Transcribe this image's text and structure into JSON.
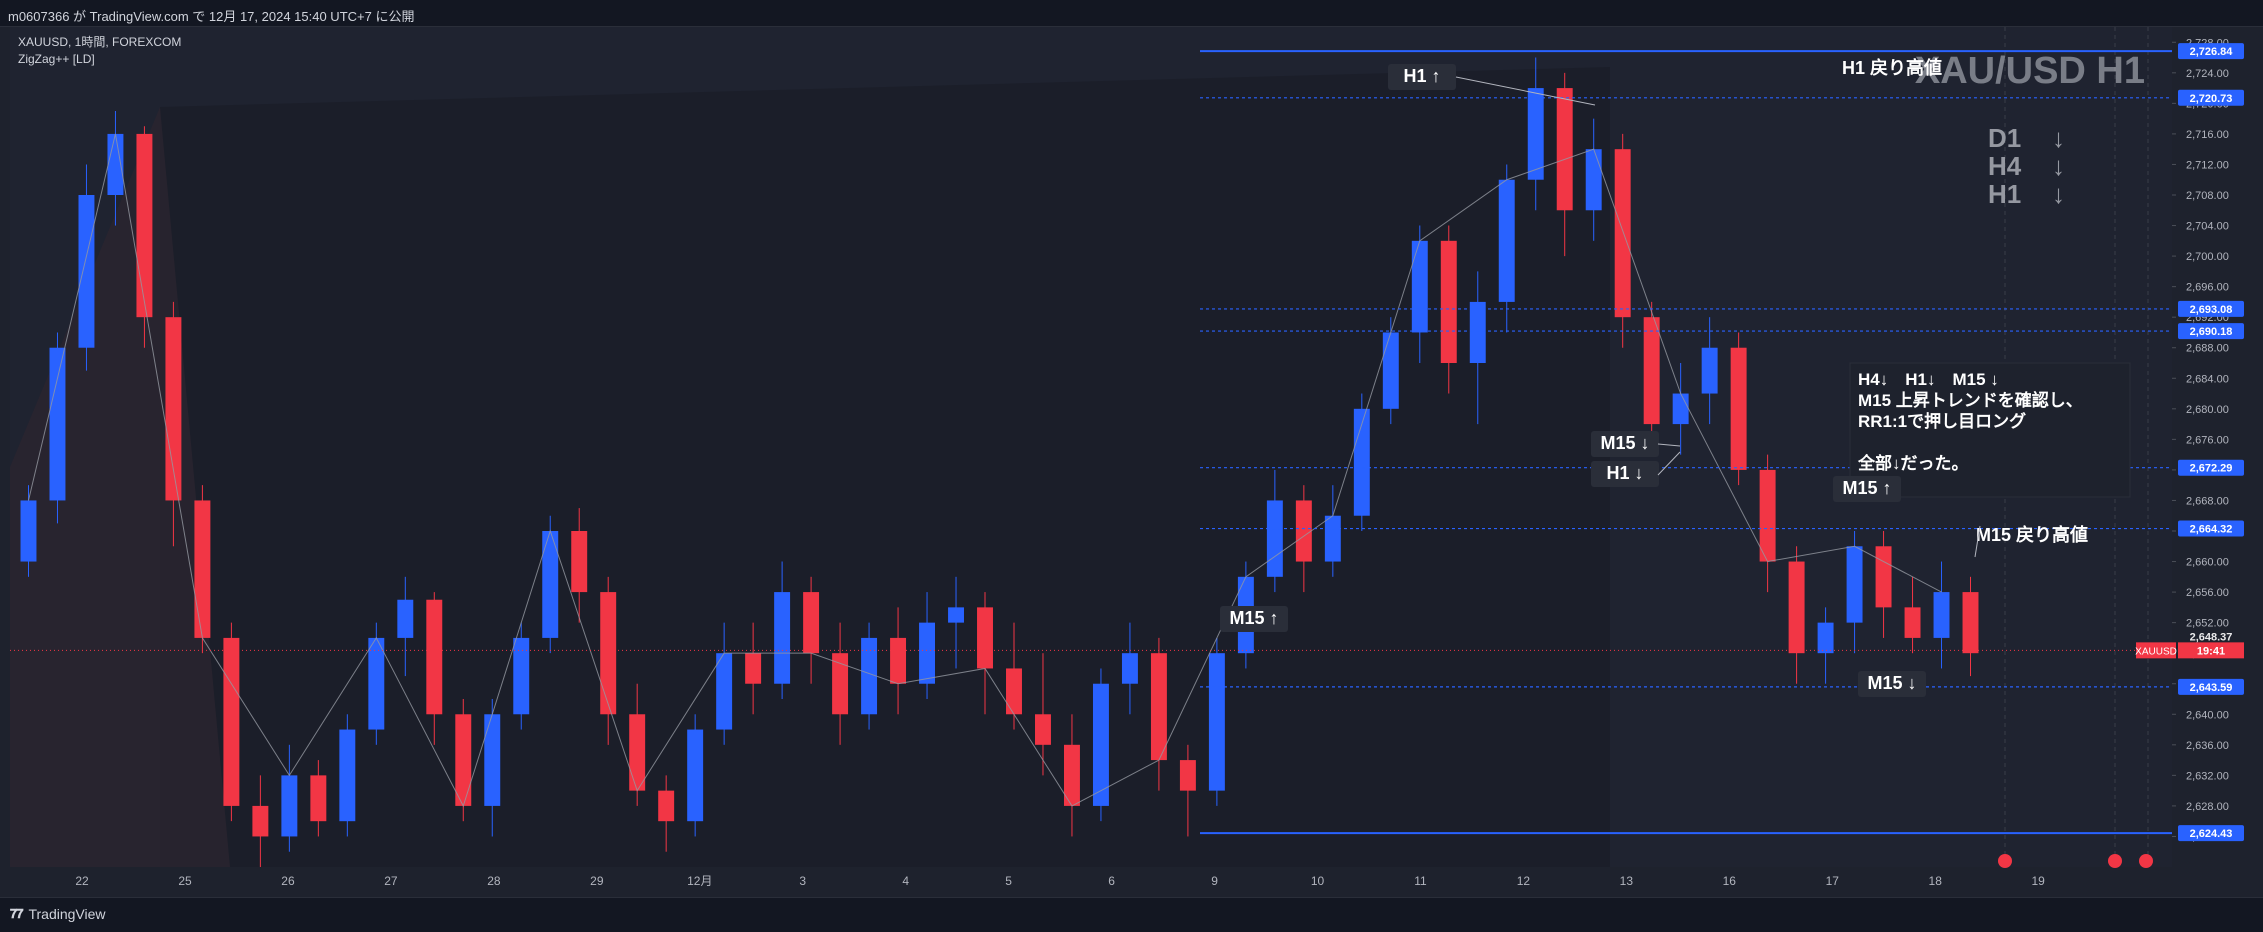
{
  "header": {
    "published_text": "m0607366 が TradingView.com で 12月 17, 2024 15:40 UTC+7 に公開"
  },
  "legend": {
    "symbol_line": "XAUUSD, 1時間, FOREXCOM",
    "indicator_line": "ZigZag++ [LD]"
  },
  "watermark": "XAU/USD H1",
  "trend_block": [
    {
      "label": "D1",
      "arrow": "↓"
    },
    {
      "label": "H4",
      "arrow": "↓"
    },
    {
      "label": "H1",
      "arrow": "↓"
    }
  ],
  "note": {
    "lines": [
      "H4↓　H1↓　M15 ↓",
      "M15 上昇トレンドを確認し、",
      "RR1:1で押し目ロング",
      "",
      "全部↓だった。"
    ]
  },
  "current_price": {
    "symbol": "XAUUSD",
    "countdown": "19:41",
    "partial_value": "2,648.37"
  },
  "footer": {
    "brand": "TradingView"
  },
  "colors": {
    "bull": "#2962ff",
    "bear": "#f23645",
    "level": "#2962ff",
    "background": "#1e222d",
    "zigzag": "#9598a1"
  },
  "chart_data": {
    "type": "candlestick",
    "symbol": "XAUUSD",
    "timeframe": "1時間",
    "ylim": [
      2620,
      2730
    ],
    "y_ticks": [
      2624.0,
      2628.0,
      2632.0,
      2636.0,
      2640.0,
      2644.0,
      2648.0,
      2652.0,
      2656.0,
      2660.0,
      2664.0,
      2668.0,
      2672.0,
      2676.0,
      2680.0,
      2684.0,
      2688.0,
      2692.0,
      2696.0,
      2700.0,
      2704.0,
      2708.0,
      2712.0,
      2716.0,
      2720.0,
      2724.0,
      2728.0
    ],
    "y_tick_labels": [
      "2,624.00",
      "2,628.00",
      "2,632.00",
      "2,636.00",
      "2,640.00",
      "2,644.00",
      "2,648.00",
      "2,652.00",
      "2,656.00",
      "2,660.00",
      "2,664.00",
      "2,668.00",
      "2,672.00",
      "2,676.00",
      "2,680.00",
      "2,684.00",
      "2,688.00",
      "2,692.00",
      "2,696.00",
      "2,700.00",
      "2,704.00",
      "2,708.00",
      "2,712.00",
      "2,716.00",
      "2,720.00",
      "2,724.00",
      "2,728.00"
    ],
    "x_tick_labels": [
      "22",
      "25",
      "26",
      "27",
      "28",
      "29",
      "12月",
      "3",
      "4",
      "5",
      "6",
      "9",
      "10",
      "11",
      "12",
      "13",
      "16",
      "17",
      "18",
      "19"
    ],
    "price_levels": [
      {
        "label": "2,726.84",
        "value": 2726.84,
        "style": "solid"
      },
      {
        "label": "2,720.73",
        "value": 2720.73,
        "style": "dotted"
      },
      {
        "label": "2,693.08",
        "value": 2693.08,
        "style": "dotted"
      },
      {
        "label": "2,690.18",
        "value": 2690.18,
        "style": "dotted"
      },
      {
        "label": "2,672.29",
        "value": 2672.29,
        "style": "dotted"
      },
      {
        "label": "2,664.32",
        "value": 2664.32,
        "style": "dotted"
      },
      {
        "label": "2,643.59",
        "value": 2643.59,
        "style": "dotted"
      },
      {
        "label": "2,624.43",
        "value": 2624.43,
        "style": "solid"
      }
    ],
    "current_price": 2648.37,
    "annotations": [
      {
        "text": "H1 ↑"
      },
      {
        "text": "H1 戻り高値"
      },
      {
        "text": "M15 ↓"
      },
      {
        "text": "H1 ↓"
      },
      {
        "text": "M15 ↑"
      },
      {
        "text": "M15 ↑"
      },
      {
        "text": "M15 戻り高値"
      },
      {
        "text": "M15 ↓"
      }
    ],
    "ohlc": [
      [
        2660,
        2670,
        2658,
        2668
      ],
      [
        2668,
        2690,
        2665,
        2688
      ],
      [
        2688,
        2712,
        2685,
        2708
      ],
      [
        2708,
        2719,
        2704,
        2716
      ],
      [
        2716,
        2717,
        2688,
        2692
      ],
      [
        2692,
        2694,
        2662,
        2668
      ],
      [
        2668,
        2670,
        2648,
        2650
      ],
      [
        2650,
        2652,
        2626,
        2628
      ],
      [
        2628,
        2632,
        2620,
        2624
      ],
      [
        2624,
        2636,
        2622,
        2632
      ],
      [
        2632,
        2634,
        2624,
        2626
      ],
      [
        2626,
        2640,
        2624,
        2638
      ],
      [
        2638,
        2652,
        2636,
        2650
      ],
      [
        2650,
        2658,
        2645,
        2655
      ],
      [
        2655,
        2656,
        2636,
        2640
      ],
      [
        2640,
        2642,
        2626,
        2628
      ],
      [
        2628,
        2642,
        2624,
        2640
      ],
      [
        2640,
        2652,
        2638,
        2650
      ],
      [
        2650,
        2666,
        2648,
        2664
      ],
      [
        2664,
        2667,
        2652,
        2656
      ],
      [
        2656,
        2658,
        2636,
        2640
      ],
      [
        2640,
        2644,
        2628,
        2630
      ],
      [
        2630,
        2632,
        2622,
        2626
      ],
      [
        2626,
        2640,
        2624,
        2638
      ],
      [
        2638,
        2652,
        2636,
        2648
      ],
      [
        2648,
        2652,
        2640,
        2644
      ],
      [
        2644,
        2660,
        2642,
        2656
      ],
      [
        2656,
        2658,
        2644,
        2648
      ],
      [
        2648,
        2652,
        2636,
        2640
      ],
      [
        2640,
        2652,
        2638,
        2650
      ],
      [
        2650,
        2654,
        2640,
        2644
      ],
      [
        2644,
        2656,
        2642,
        2652
      ],
      [
        2652,
        2658,
        2646,
        2654
      ],
      [
        2654,
        2656,
        2640,
        2646
      ],
      [
        2646,
        2652,
        2638,
        2640
      ],
      [
        2640,
        2648,
        2632,
        2636
      ],
      [
        2636,
        2640,
        2624,
        2628
      ],
      [
        2628,
        2646,
        2626,
        2644
      ],
      [
        2644,
        2652,
        2640,
        2648
      ],
      [
        2648,
        2650,
        2630,
        2634
      ],
      [
        2634,
        2636,
        2624,
        2630
      ],
      [
        2630,
        2650,
        2628,
        2648
      ],
      [
        2648,
        2660,
        2646,
        2658
      ],
      [
        2658,
        2672,
        2656,
        2668
      ],
      [
        2668,
        2670,
        2656,
        2660
      ],
      [
        2660,
        2670,
        2658,
        2666
      ],
      [
        2666,
        2682,
        2664,
        2680
      ],
      [
        2680,
        2692,
        2678,
        2690
      ],
      [
        2690,
        2704,
        2686,
        2702
      ],
      [
        2702,
        2704,
        2682,
        2686
      ],
      [
        2686,
        2698,
        2678,
        2694
      ],
      [
        2694,
        2712,
        2690,
        2710
      ],
      [
        2710,
        2726,
        2706,
        2722
      ],
      [
        2722,
        2724,
        2700,
        2706
      ],
      [
        2706,
        2718,
        2702,
        2714
      ],
      [
        2714,
        2716,
        2688,
        2692
      ],
      [
        2692,
        2694,
        2674,
        2678
      ],
      [
        2678,
        2686,
        2674,
        2682
      ],
      [
        2682,
        2692,
        2678,
        2688
      ],
      [
        2688,
        2690,
        2670,
        2672
      ],
      [
        2672,
        2674,
        2656,
        2660
      ],
      [
        2660,
        2662,
        2644,
        2648
      ],
      [
        2648,
        2654,
        2644,
        2652
      ],
      [
        2652,
        2664,
        2648,
        2662
      ],
      [
        2662,
        2664,
        2650,
        2654
      ],
      [
        2654,
        2658,
        2648,
        2650
      ],
      [
        2650,
        2660,
        2646,
        2656
      ],
      [
        2656,
        2658,
        2645,
        2648
      ]
    ]
  }
}
